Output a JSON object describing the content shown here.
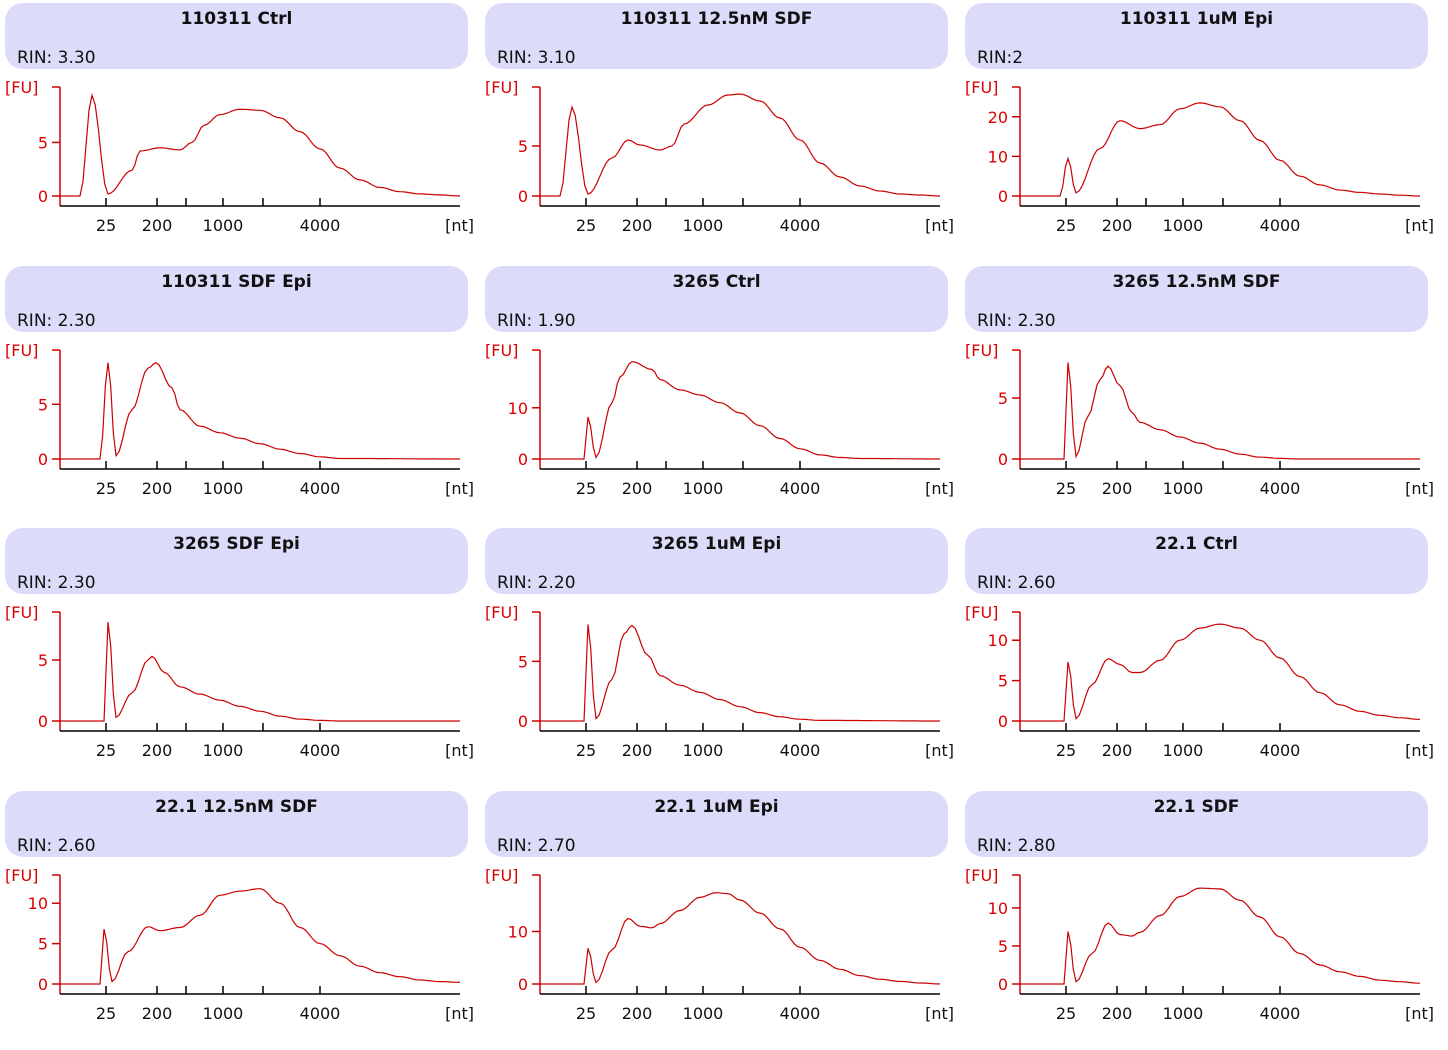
{
  "colors": {
    "header_bg": "#dcdcfa",
    "trace": "#cc0000",
    "axis_y": "#cc0000",
    "axis_x": "#000000"
  },
  "chart_data": [
    {
      "type": "line",
      "title": "110311 Ctrl",
      "rin": "RIN: 3.30",
      "ylabel": "[FU]",
      "xlabel": "[nt]",
      "y_ticks": [
        0,
        5
      ],
      "ylim": [
        0,
        9.8
      ],
      "x_tick_labels": [
        "25",
        "200",
        "1000",
        "4000"
      ],
      "series": [
        {
          "x": [
            0,
            0.05,
            0.08,
            0.12,
            0.18,
            0.2,
            0.25,
            0.3,
            0.33,
            0.36,
            0.4,
            0.45,
            0.5,
            0.55,
            0.6,
            0.65,
            0.7,
            0.75,
            0.8,
            0.85,
            0.9,
            0.95,
            1
          ],
          "y": [
            0,
            0,
            9.4,
            0.2,
            2.4,
            4.2,
            4.5,
            4.3,
            5,
            6.6,
            7.6,
            8.1,
            8,
            7.3,
            6,
            4.4,
            2.6,
            1.5,
            0.8,
            0.4,
            0.2,
            0.1,
            0
          ]
        }
      ]
    },
    {
      "type": "line",
      "title": "110311 12.5nM SDF",
      "rin": "RIN: 3.10",
      "ylabel": "[FU]",
      "xlabel": "[nt]",
      "y_ticks": [
        0,
        5
      ],
      "ylim": [
        0,
        10.5
      ],
      "x_tick_labels": [
        "25",
        "200",
        "1000",
        "4000"
      ],
      "series": [
        {
          "x": [
            0,
            0.05,
            0.08,
            0.12,
            0.18,
            0.22,
            0.25,
            0.3,
            0.33,
            0.36,
            0.42,
            0.47,
            0.5,
            0.55,
            0.6,
            0.65,
            0.7,
            0.75,
            0.8,
            0.85,
            0.9,
            0.95,
            1
          ],
          "y": [
            0,
            0,
            8.9,
            0.2,
            3.8,
            5.6,
            5.1,
            4.6,
            5,
            7.2,
            9.1,
            10.1,
            10.2,
            9.5,
            7.8,
            5.6,
            3.3,
            1.9,
            1,
            0.5,
            0.2,
            0.1,
            0
          ]
        }
      ]
    },
    {
      "type": "line",
      "title": "110311 1uM Epi",
      "rin": "RIN:2",
      "ylabel": "[FU]",
      "xlabel": "[nt]",
      "y_ticks": [
        0,
        10,
        20
      ],
      "ylim": [
        0,
        26.5
      ],
      "x_tick_labels": [
        "25",
        "200",
        "1000",
        "4000"
      ],
      "series": [
        {
          "x": [
            0,
            0.1,
            0.12,
            0.14,
            0.2,
            0.25,
            0.3,
            0.35,
            0.4,
            0.45,
            0.5,
            0.55,
            0.6,
            0.65,
            0.7,
            0.75,
            0.8,
            0.85,
            0.9,
            0.95,
            1
          ],
          "y": [
            0,
            0,
            9.5,
            0.8,
            12,
            19,
            17,
            18,
            22,
            23.5,
            22.5,
            19,
            14,
            9,
            5,
            2.8,
            1.5,
            0.9,
            0.5,
            0.2,
            0
          ]
        }
      ]
    },
    {
      "type": "line",
      "title": "110311 SDF Epi",
      "rin": "RIN: 2.30",
      "ylabel": "[FU]",
      "xlabel": "[nt]",
      "y_ticks": [
        0,
        5
      ],
      "ylim": [
        0,
        9.6
      ],
      "x_tick_labels": [
        "25",
        "200",
        "1000",
        "4000"
      ],
      "series": [
        {
          "x": [
            0,
            0.1,
            0.12,
            0.14,
            0.18,
            0.22,
            0.24,
            0.28,
            0.3,
            0.35,
            0.4,
            0.45,
            0.5,
            0.55,
            0.6,
            0.65,
            0.7,
            1
          ],
          "y": [
            0,
            0,
            8.8,
            0.3,
            4.5,
            8.3,
            8.8,
            6.5,
            4.5,
            3,
            2.4,
            1.9,
            1.4,
            0.9,
            0.5,
            0.2,
            0.05,
            0
          ]
        }
      ]
    },
    {
      "type": "line",
      "title": "3265 Ctrl",
      "rin": "RIN: 1.90",
      "ylabel": "[FU]",
      "xlabel": "[nt]",
      "y_ticks": [
        0,
        10
      ],
      "ylim": [
        0,
        20.5
      ],
      "x_tick_labels": [
        "25",
        "200",
        "1000",
        "4000"
      ],
      "series": [
        {
          "x": [
            0,
            0.11,
            0.12,
            0.14,
            0.18,
            0.2,
            0.23,
            0.28,
            0.3,
            0.35,
            0.4,
            0.45,
            0.5,
            0.55,
            0.6,
            0.65,
            0.7,
            0.75,
            0.8,
            1
          ],
          "y": [
            0,
            0,
            8.2,
            0.3,
            11,
            16,
            19,
            17.5,
            15.5,
            13.5,
            12.5,
            11,
            9,
            6.5,
            4,
            2,
            0.8,
            0.3,
            0.1,
            0
          ]
        }
      ]
    },
    {
      "type": "line",
      "title": "3265 12.5nM SDF",
      "rin": "RIN: 2.30",
      "ylabel": "[FU]",
      "xlabel": "[nt]",
      "y_ticks": [
        0,
        5
      ],
      "ylim": [
        0,
        8.6
      ],
      "x_tick_labels": [
        "25",
        "200",
        "1000",
        "4000"
      ],
      "series": [
        {
          "x": [
            0,
            0.11,
            0.12,
            0.14,
            0.17,
            0.2,
            0.22,
            0.25,
            0.28,
            0.3,
            0.35,
            0.4,
            0.45,
            0.5,
            0.55,
            0.6,
            0.65,
            0.7,
            0.8,
            1
          ],
          "y": [
            0,
            0,
            7.9,
            0.2,
            3.5,
            6.5,
            7.6,
            6,
            3.8,
            3,
            2.4,
            1.8,
            1.3,
            0.8,
            0.4,
            0.15,
            0.05,
            0,
            0,
            0
          ]
        }
      ]
    },
    {
      "type": "line",
      "title": "3265 SDF Epi",
      "rin": "RIN: 2.30",
      "ylabel": "[FU]",
      "xlabel": "[nt]",
      "y_ticks": [
        0,
        5
      ],
      "ylim": [
        0,
        8.6
      ],
      "x_tick_labels": [
        "25",
        "200",
        "1000",
        "4000"
      ],
      "series": [
        {
          "x": [
            0,
            0.11,
            0.12,
            0.14,
            0.18,
            0.22,
            0.23,
            0.26,
            0.3,
            0.35,
            0.4,
            0.45,
            0.5,
            0.55,
            0.6,
            0.65,
            0.7,
            1
          ],
          "y": [
            0,
            0,
            8.1,
            0.3,
            2.3,
            5,
            5.3,
            4,
            2.8,
            2.2,
            1.7,
            1.2,
            0.8,
            0.4,
            0.15,
            0.05,
            0,
            0
          ]
        }
      ]
    },
    {
      "type": "line",
      "title": "3265 1uM Epi",
      "rin": "RIN: 2.20",
      "ylabel": "[FU]",
      "xlabel": "[nt]",
      "y_ticks": [
        0,
        5
      ],
      "ylim": [
        0,
        8.8
      ],
      "x_tick_labels": [
        "25",
        "200",
        "1000",
        "4000"
      ],
      "series": [
        {
          "x": [
            0,
            0.11,
            0.12,
            0.14,
            0.18,
            0.21,
            0.23,
            0.27,
            0.3,
            0.35,
            0.4,
            0.45,
            0.5,
            0.55,
            0.6,
            0.65,
            0.7,
            1
          ],
          "y": [
            0,
            0,
            8.1,
            0.2,
            3.5,
            7.3,
            8,
            5.5,
            3.8,
            3,
            2.4,
            1.8,
            1.2,
            0.7,
            0.35,
            0.15,
            0.05,
            0
          ]
        }
      ]
    },
    {
      "type": "line",
      "title": "22.1 Ctrl",
      "rin": "RIN: 2.60",
      "ylabel": "[FU]",
      "xlabel": "[nt]",
      "y_ticks": [
        0,
        5,
        10
      ],
      "ylim": [
        0,
        13
      ],
      "x_tick_labels": [
        "25",
        "200",
        "1000",
        "4000"
      ],
      "series": [
        {
          "x": [
            0,
            0.11,
            0.12,
            0.14,
            0.18,
            0.22,
            0.25,
            0.28,
            0.3,
            0.35,
            0.4,
            0.45,
            0.5,
            0.55,
            0.6,
            0.65,
            0.7,
            0.75,
            0.8,
            0.85,
            0.9,
            0.95,
            1
          ],
          "y": [
            0,
            0,
            7.3,
            0.3,
            4.5,
            7.7,
            7,
            6,
            6,
            7.5,
            10,
            11.5,
            12,
            11.5,
            10,
            7.8,
            5.5,
            3.5,
            2,
            1.2,
            0.7,
            0.4,
            0.2
          ]
        }
      ]
    },
    {
      "type": "line",
      "title": "22.1 12.5nM SDF",
      "rin": "RIN: 2.60",
      "ylabel": "[FU]",
      "xlabel": "[nt]",
      "y_ticks": [
        0,
        5,
        10
      ],
      "ylim": [
        0,
        13
      ],
      "x_tick_labels": [
        "25",
        "200",
        "1000",
        "4000"
      ],
      "series": [
        {
          "x": [
            0,
            0.1,
            0.11,
            0.13,
            0.17,
            0.22,
            0.25,
            0.3,
            0.35,
            0.4,
            0.45,
            0.5,
            0.55,
            0.6,
            0.65,
            0.7,
            0.75,
            0.8,
            0.85,
            0.9,
            0.95,
            1
          ],
          "y": [
            0,
            0,
            6.8,
            0.3,
            4,
            7.1,
            6.6,
            7,
            8.5,
            11,
            11.5,
            11.8,
            10,
            7,
            5,
            3.5,
            2.2,
            1.4,
            0.9,
            0.5,
            0.3,
            0.2
          ]
        }
      ]
    },
    {
      "type": "line",
      "title": "22.1 1uM Epi",
      "rin": "RIN: 2.70",
      "ylabel": "[FU]",
      "xlabel": "[nt]",
      "y_ticks": [
        10,
        0
      ],
      "ylim": [
        0,
        20
      ],
      "x_tick_labels": [
        "25",
        "200",
        "1000",
        "4000"
      ],
      "series": [
        {
          "x": [
            0,
            0.11,
            0.12,
            0.14,
            0.18,
            0.22,
            0.25,
            0.28,
            0.3,
            0.35,
            0.4,
            0.44,
            0.47,
            0.5,
            0.55,
            0.6,
            0.65,
            0.7,
            0.75,
            0.8,
            0.85,
            0.9,
            0.95,
            1
          ],
          "y": [
            0,
            0,
            6.8,
            0.3,
            6.5,
            12.5,
            11,
            10.7,
            11.5,
            14,
            16.5,
            17.4,
            17.2,
            16,
            13.5,
            10.5,
            7,
            4.5,
            2.8,
            1.6,
            0.9,
            0.5,
            0.2,
            0
          ]
        }
      ]
    },
    {
      "type": "line",
      "title": "22.1 SDF",
      "rin": "RIN: 2.80",
      "ylabel": "[FU]",
      "xlabel": "[nt]",
      "y_ticks": [
        0,
        5,
        10
      ],
      "ylim": [
        0,
        13.8
      ],
      "x_tick_labels": [
        "25",
        "200",
        "1000",
        "4000"
      ],
      "series": [
        {
          "x": [
            0,
            0.11,
            0.12,
            0.14,
            0.18,
            0.22,
            0.25,
            0.28,
            0.3,
            0.35,
            0.4,
            0.45,
            0.5,
            0.55,
            0.6,
            0.65,
            0.7,
            0.75,
            0.8,
            0.85,
            0.9,
            0.95,
            1
          ],
          "y": [
            0,
            0,
            6.9,
            0.3,
            4,
            8,
            6.5,
            6.3,
            6.8,
            9,
            11.5,
            12.6,
            12.5,
            11,
            8.8,
            6.2,
            4,
            2.5,
            1.6,
            1,
            0.5,
            0.3,
            0.1
          ]
        }
      ]
    }
  ]
}
